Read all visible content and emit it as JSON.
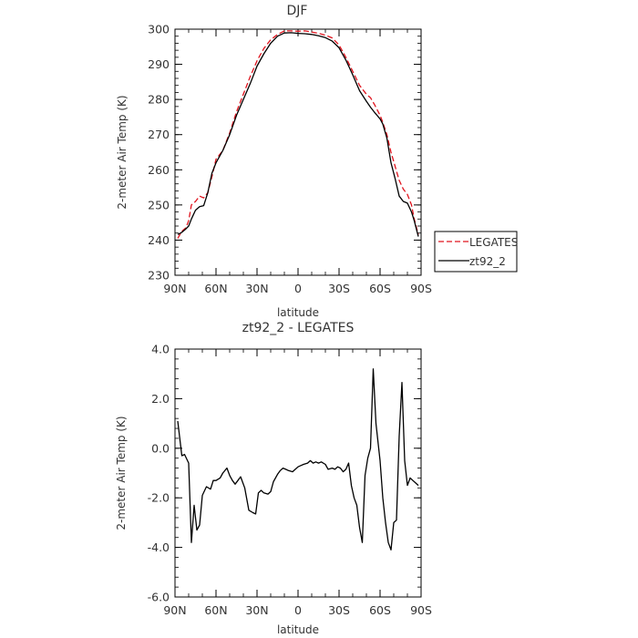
{
  "chart_data": [
    {
      "type": "line",
      "title": "DJF",
      "xlabel": "latitude",
      "ylabel": "2-meter Air Temp (K)",
      "xlim": [
        90,
        -90
      ],
      "ylim": [
        230,
        300
      ],
      "x_tick_values": [
        90,
        60,
        30,
        0,
        -30,
        -60,
        -90
      ],
      "x_tick_labels": [
        "90N",
        "60N",
        "30N",
        "0",
        "30S",
        "60S",
        "90S"
      ],
      "y_tick_labels": [
        "230",
        "240",
        "250",
        "260",
        "270",
        "280",
        "290",
        "300"
      ],
      "legend_position": "right",
      "series": [
        {
          "name": "LEGATES",
          "color": "#e0141e",
          "dash": true,
          "x": [
            88,
            85,
            82,
            80,
            78,
            75,
            72,
            69,
            66,
            63,
            60,
            55,
            50,
            45,
            40,
            35,
            30,
            25,
            20,
            15,
            10,
            5,
            0,
            -5,
            -10,
            -15,
            -20,
            -25,
            -30,
            -35,
            -40,
            -45,
            -50,
            -53,
            -56,
            -60,
            -62,
            -65,
            -68,
            -71,
            -74,
            -77,
            -80,
            -83,
            -85,
            -88
          ],
          "values": [
            240.5,
            242.5,
            243.5,
            245.5,
            250,
            251,
            252.5,
            252,
            253.5,
            258,
            263,
            265.5,
            270.5,
            276.5,
            281.5,
            286.5,
            291,
            294.5,
            297,
            298.5,
            299.5,
            299.5,
            299.4,
            299.5,
            299.2,
            298.8,
            298.3,
            297.5,
            295.5,
            292,
            288,
            284,
            281.5,
            280.5,
            278.5,
            275.5,
            273.5,
            270,
            265,
            261,
            257,
            254.5,
            253,
            250,
            246,
            241.5
          ]
        },
        {
          "name": "zt92_2",
          "color": "#000000",
          "dash": false,
          "x": [
            88,
            85,
            82,
            80,
            78,
            75,
            72,
            69,
            66,
            63,
            60,
            55,
            50,
            45,
            40,
            35,
            30,
            25,
            20,
            15,
            10,
            5,
            0,
            -5,
            -10,
            -15,
            -20,
            -25,
            -30,
            -35,
            -40,
            -45,
            -50,
            -53,
            -56,
            -60,
            -62,
            -65,
            -68,
            -71,
            -74,
            -77,
            -80,
            -83,
            -85,
            -88
          ],
          "values": [
            241.6,
            242.2,
            243.2,
            244,
            246,
            248.5,
            249.5,
            249.8,
            253.5,
            259,
            262,
            265.5,
            270,
            275.5,
            280,
            284.5,
            289.5,
            293,
            296,
            298,
            298.9,
            299,
            298.8,
            298.7,
            298.5,
            298.1,
            297.6,
            296.6,
            294.7,
            291.2,
            287,
            282.5,
            279.5,
            277.8,
            276.3,
            274.5,
            273,
            269,
            262,
            257.5,
            252.5,
            251,
            250.5,
            248,
            245.5,
            241
          ]
        }
      ]
    },
    {
      "type": "line",
      "title": "zt92_2 - LEGATES",
      "xlabel": "latitude",
      "ylabel": "2-meter Air Temp (K)",
      "xlim": [
        90,
        -90
      ],
      "ylim": [
        -6.0,
        4.0
      ],
      "x_tick_values": [
        90,
        60,
        30,
        0,
        -30,
        -60,
        -90
      ],
      "x_tick_labels": [
        "90N",
        "60N",
        "30N",
        "0",
        "30S",
        "60S",
        "90S"
      ],
      "y_tick_labels": [
        "-6.0",
        "-4.0",
        "-2.0",
        "0.0",
        "2.0",
        "4.0"
      ],
      "series": [
        {
          "color": "#000000",
          "x": [
            88,
            85,
            83,
            80,
            78,
            76,
            74,
            72,
            70,
            67,
            64,
            62,
            60,
            57,
            55,
            52,
            50,
            48,
            46,
            44,
            42,
            39,
            36,
            33,
            31,
            29,
            27,
            25,
            22,
            20,
            18,
            15,
            13,
            11,
            9,
            7,
            4,
            2,
            0,
            -2,
            -4,
            -7,
            -9,
            -11,
            -13,
            -15,
            -17,
            -20,
            -22,
            -25,
            -27,
            -29,
            -31,
            -33,
            -35,
            -37,
            -39,
            -41,
            -43,
            -45,
            -47,
            -49,
            -51,
            -53,
            -55,
            -57,
            -60,
            -62,
            -64,
            -66,
            -68,
            -70,
            -72,
            -74,
            -76,
            -78,
            -80,
            -82,
            -84,
            -86,
            -88
          ],
          "values": [
            1.1,
            -0.3,
            -0.25,
            -0.6,
            -3.8,
            -2.3,
            -3.3,
            -3.1,
            -1.9,
            -1.55,
            -1.65,
            -1.3,
            -1.3,
            -1.2,
            -1.0,
            -0.8,
            -1.1,
            -1.3,
            -1.45,
            -1.3,
            -1.15,
            -1.6,
            -2.5,
            -2.6,
            -2.65,
            -1.8,
            -1.7,
            -1.8,
            -1.85,
            -1.75,
            -1.35,
            -1.05,
            -0.9,
            -0.8,
            -0.85,
            -0.9,
            -0.95,
            -0.85,
            -0.75,
            -0.7,
            -0.65,
            -0.6,
            -0.5,
            -0.6,
            -0.55,
            -0.6,
            -0.55,
            -0.65,
            -0.85,
            -0.8,
            -0.85,
            -0.75,
            -0.8,
            -0.95,
            -0.85,
            -0.6,
            -1.5,
            -2.0,
            -2.3,
            -3.2,
            -3.8,
            -1.1,
            -0.4,
            0.0,
            3.2,
            1.0,
            -0.5,
            -2.0,
            -3.0,
            -3.8,
            -4.1,
            -3.0,
            -2.9,
            0.5,
            2.65,
            -0.5,
            -1.5,
            -1.2,
            -1.3,
            -1.4,
            -1.5
          ]
        }
      ]
    }
  ]
}
